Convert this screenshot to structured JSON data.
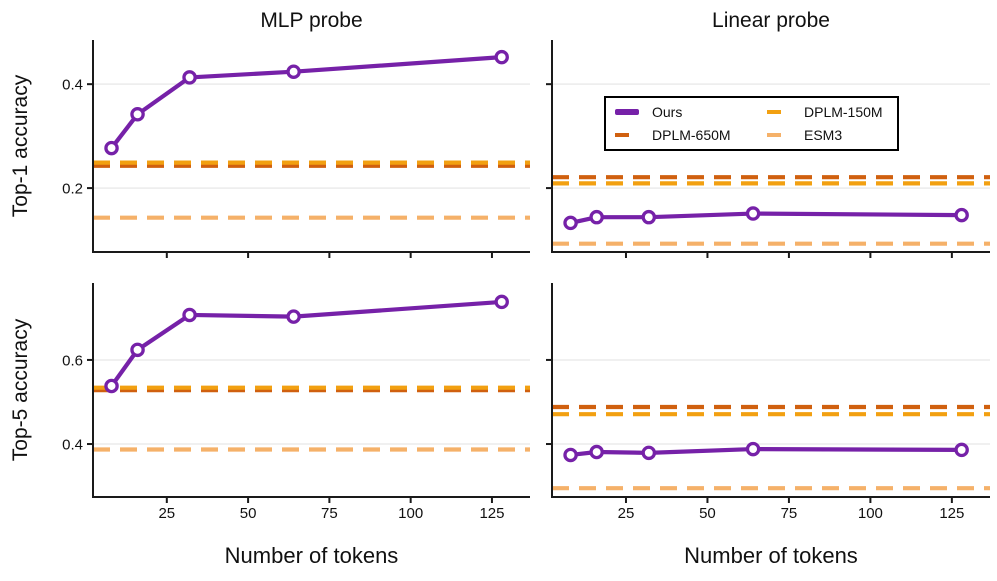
{
  "figure": {
    "column_titles": [
      "MLP probe",
      "Linear probe"
    ],
    "row_ylabels": [
      "Top-1 accuracy",
      "Top-5 accuracy"
    ],
    "xlabel": "Number of tokens"
  },
  "colors": {
    "ours": "#7621A8",
    "dplm_650m": "#D0600F",
    "dplm_150m": "#F2A011",
    "esm3": "#F5B169",
    "grid": "#EBEBEB",
    "spine": "#1A1A1A",
    "tick_text": "#111111"
  },
  "legend": {
    "position": "upper-left inside Linear probe / Top-1 panel",
    "entries": [
      {
        "label": "Ours",
        "color": "#7621A8",
        "style": "solid"
      },
      {
        "label": "DPLM-650M",
        "color": "#D0600F",
        "style": "dashed"
      },
      {
        "label": "DPLM-150M",
        "color": "#F2A011",
        "style": "dashed"
      },
      {
        "label": "ESM3",
        "color": "#F5B169",
        "style": "dashed"
      }
    ]
  },
  "chart_data": [
    {
      "id": "mlp-probe-top1",
      "type": "line",
      "col_title": "MLP probe",
      "ylabel": "Top-1 accuracy",
      "x": [
        8,
        16,
        32,
        64,
        128
      ],
      "series": [
        {
          "name": "Ours",
          "values": [
            0.277,
            0.342,
            0.413,
            0.424,
            0.452
          ]
        }
      ],
      "baselines": [
        {
          "name": "DPLM-650M",
          "value": 0.243
        },
        {
          "name": "DPLM-150M",
          "value": 0.249
        },
        {
          "name": "ESM3",
          "value": 0.143
        }
      ],
      "xlim": [
        2.3,
        136.7
      ],
      "ylim": [
        0.077,
        0.485
      ],
      "xticks": [
        {
          "v": 25,
          "label": "25"
        },
        {
          "v": 50,
          "label": "50"
        },
        {
          "v": 75,
          "label": "75"
        },
        {
          "v": 100,
          "label": "100"
        },
        {
          "v": 125,
          "label": "125"
        }
      ],
      "yticks": [
        {
          "v": 0.2,
          "label": "0.2"
        },
        {
          "v": 0.4,
          "label": "0.4"
        }
      ],
      "show_xtick_labels": false,
      "show_ytick_labels": true,
      "grid": "horizontal"
    },
    {
      "id": "linear-probe-top1",
      "type": "line",
      "col_title": "Linear probe",
      "ylabel": "Top-1 accuracy",
      "x": [
        8,
        16,
        32,
        64,
        128
      ],
      "series": [
        {
          "name": "Ours",
          "values": [
            0.133,
            0.144,
            0.144,
            0.151,
            0.148
          ]
        }
      ],
      "baselines": [
        {
          "name": "DPLM-650M",
          "value": 0.221
        },
        {
          "name": "DPLM-150M",
          "value": 0.209
        },
        {
          "name": "ESM3",
          "value": 0.093
        }
      ],
      "xlim": [
        2.3,
        136.7
      ],
      "ylim": [
        0.077,
        0.485
      ],
      "xticks": [
        {
          "v": 25,
          "label": "25"
        },
        {
          "v": 50,
          "label": "50"
        },
        {
          "v": 75,
          "label": "75"
        },
        {
          "v": 100,
          "label": "100"
        },
        {
          "v": 125,
          "label": "125"
        }
      ],
      "yticks": [
        {
          "v": 0.2,
          "label": "0.2"
        },
        {
          "v": 0.4,
          "label": "0.4"
        }
      ],
      "show_xtick_labels": false,
      "show_ytick_labels": false,
      "grid": "horizontal",
      "has_legend": true
    },
    {
      "id": "mlp-probe-top5",
      "type": "line",
      "col_title": "MLP probe",
      "ylabel": "Top-5 accuracy",
      "x": [
        8,
        16,
        32,
        64,
        128
      ],
      "series": [
        {
          "name": "Ours",
          "values": [
            0.538,
            0.624,
            0.707,
            0.703,
            0.738
          ]
        }
      ],
      "baselines": [
        {
          "name": "DPLM-650M",
          "value": 0.528
        },
        {
          "name": "DPLM-150M",
          "value": 0.534
        },
        {
          "name": "ESM3",
          "value": 0.387
        }
      ],
      "xlim": [
        2.3,
        136.7
      ],
      "ylim": [
        0.274,
        0.783
      ],
      "xticks": [
        {
          "v": 25,
          "label": "25"
        },
        {
          "v": 50,
          "label": "50"
        },
        {
          "v": 75,
          "label": "75"
        },
        {
          "v": 100,
          "label": "100"
        },
        {
          "v": 125,
          "label": "125"
        }
      ],
      "yticks": [
        {
          "v": 0.4,
          "label": "0.4"
        },
        {
          "v": 0.6,
          "label": "0.6"
        }
      ],
      "show_xtick_labels": true,
      "show_ytick_labels": true,
      "grid": "horizontal"
    },
    {
      "id": "linear-probe-top5",
      "type": "line",
      "col_title": "Linear probe",
      "ylabel": "Top-5 accuracy",
      "x": [
        8,
        16,
        32,
        64,
        128
      ],
      "series": [
        {
          "name": "Ours",
          "values": [
            0.374,
            0.381,
            0.379,
            0.388,
            0.386
          ]
        }
      ],
      "baselines": [
        {
          "name": "DPLM-650M",
          "value": 0.488
        },
        {
          "name": "DPLM-150M",
          "value": 0.471
        },
        {
          "name": "ESM3",
          "value": 0.295
        }
      ],
      "xlim": [
        2.3,
        136.7
      ],
      "ylim": [
        0.274,
        0.783
      ],
      "xticks": [
        {
          "v": 25,
          "label": "25"
        },
        {
          "v": 50,
          "label": "50"
        },
        {
          "v": 75,
          "label": "75"
        },
        {
          "v": 100,
          "label": "100"
        },
        {
          "v": 125,
          "label": "125"
        }
      ],
      "yticks": [
        {
          "v": 0.4,
          "label": "0.4"
        },
        {
          "v": 0.6,
          "label": "0.6"
        }
      ],
      "show_xtick_labels": true,
      "show_ytick_labels": false,
      "grid": "horizontal"
    }
  ]
}
